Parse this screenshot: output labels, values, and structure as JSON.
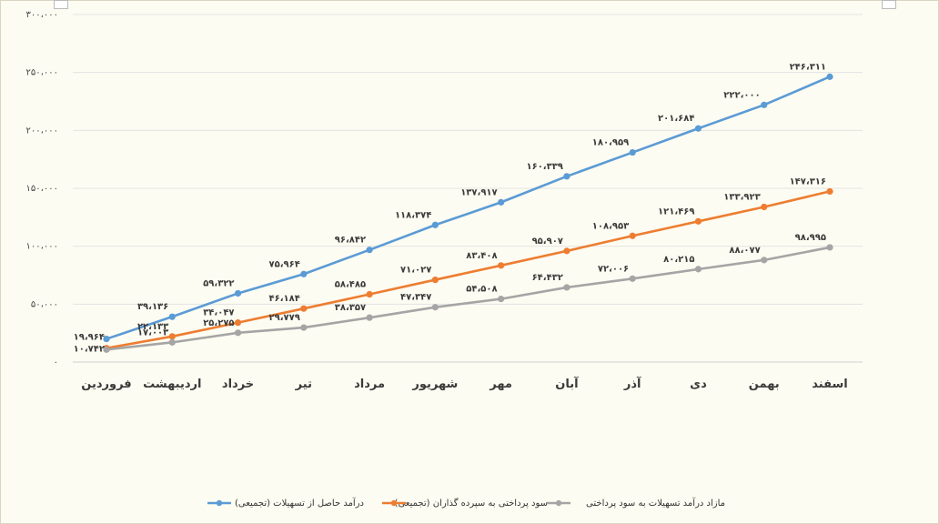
{
  "chart_data": {
    "type": "line",
    "title": "",
    "xlabel": "",
    "ylabel": "",
    "ylim": [
      0,
      300000
    ],
    "y_ticks": [
      0,
      50000,
      100000,
      150000,
      200000,
      250000,
      300000
    ],
    "y_tick_labels": [
      "۰",
      "۵۰،۰۰۰",
      "۱۰۰،۰۰۰",
      "۱۵۰،۰۰۰",
      "۲۰۰،۰۰۰",
      "۲۵۰،۰۰۰",
      "۳۰۰،۰۰۰"
    ],
    "gridlines": true,
    "legend_position": "bottom",
    "categories": [
      "فروردین",
      "اردیبهشت",
      "خرداد",
      "تیر",
      "مرداد",
      "شهریور",
      "مهر",
      "آبان",
      "آذر",
      "دی",
      "بهمن",
      "اسفند"
    ],
    "series": [
      {
        "name": "درآمد حاصل از تسهیلات (تجمیعی)",
        "color": "#5b9bd5",
        "values": [
          19964,
          39136,
          59322,
          75964,
          96842,
          118374,
          137917,
          160339,
          180959,
          201684,
          222000,
          246311
        ],
        "labels": [
          "۱۹،۹۶۴",
          "۳۹،۱۳۶",
          "۵۹،۳۲۲",
          "۷۵،۹۶۴",
          "۹۶،۸۴۲",
          "۱۱۸،۳۷۴",
          "۱۳۷،۹۱۷",
          "۱۶۰،۳۳۹",
          "۱۸۰،۹۵۹",
          "۲۰۱،۶۸۴",
          "۲۲۲،۰۰۰",
          "۲۴۶،۳۱۱"
        ]
      },
      {
        "name": "سود پرداختی به سپرده گذاران (تجمیعی)",
        "color": "#ed7d31",
        "values": [
          12000,
          22133,
          34047,
          46184,
          58485,
          71027,
          83408,
          95907,
          108953,
          121469,
          133923,
          147316
        ],
        "labels": [
          "",
          "۲۲،۱۳۳",
          "۳۴،۰۴۷",
          "۴۶،۱۸۴",
          "۵۸،۴۸۵",
          "۷۱،۰۲۷",
          "۸۳،۴۰۸",
          "۹۵،۹۰۷",
          "۱۰۸،۹۵۳",
          "۱۲۱،۴۶۹",
          "۱۳۳،۹۲۳",
          "۱۴۷،۳۱۶"
        ]
      },
      {
        "name": "مازاد درآمد تسهیلات به سود پرداختی",
        "color": "#a5a5a5",
        "values": [
          10742,
          17003,
          25275,
          29779,
          38357,
          47347,
          54508,
          64432,
          72006,
          80215,
          88077,
          98995
        ],
        "labels": [
          "۱۰،۷۴۲",
          "۱۷،۰۰۳",
          "۲۵،۲۷۵",
          "۲۹،۷۷۹",
          "۳۸،۳۵۷",
          "۴۷،۳۴۷",
          "۵۴،۵۰۸",
          "۶۴،۴۳۲",
          "۷۲،۰۰۶",
          "۸۰،۲۱۵",
          "۸۸،۰۷۷",
          "۹۸،۹۹۵"
        ]
      }
    ]
  }
}
